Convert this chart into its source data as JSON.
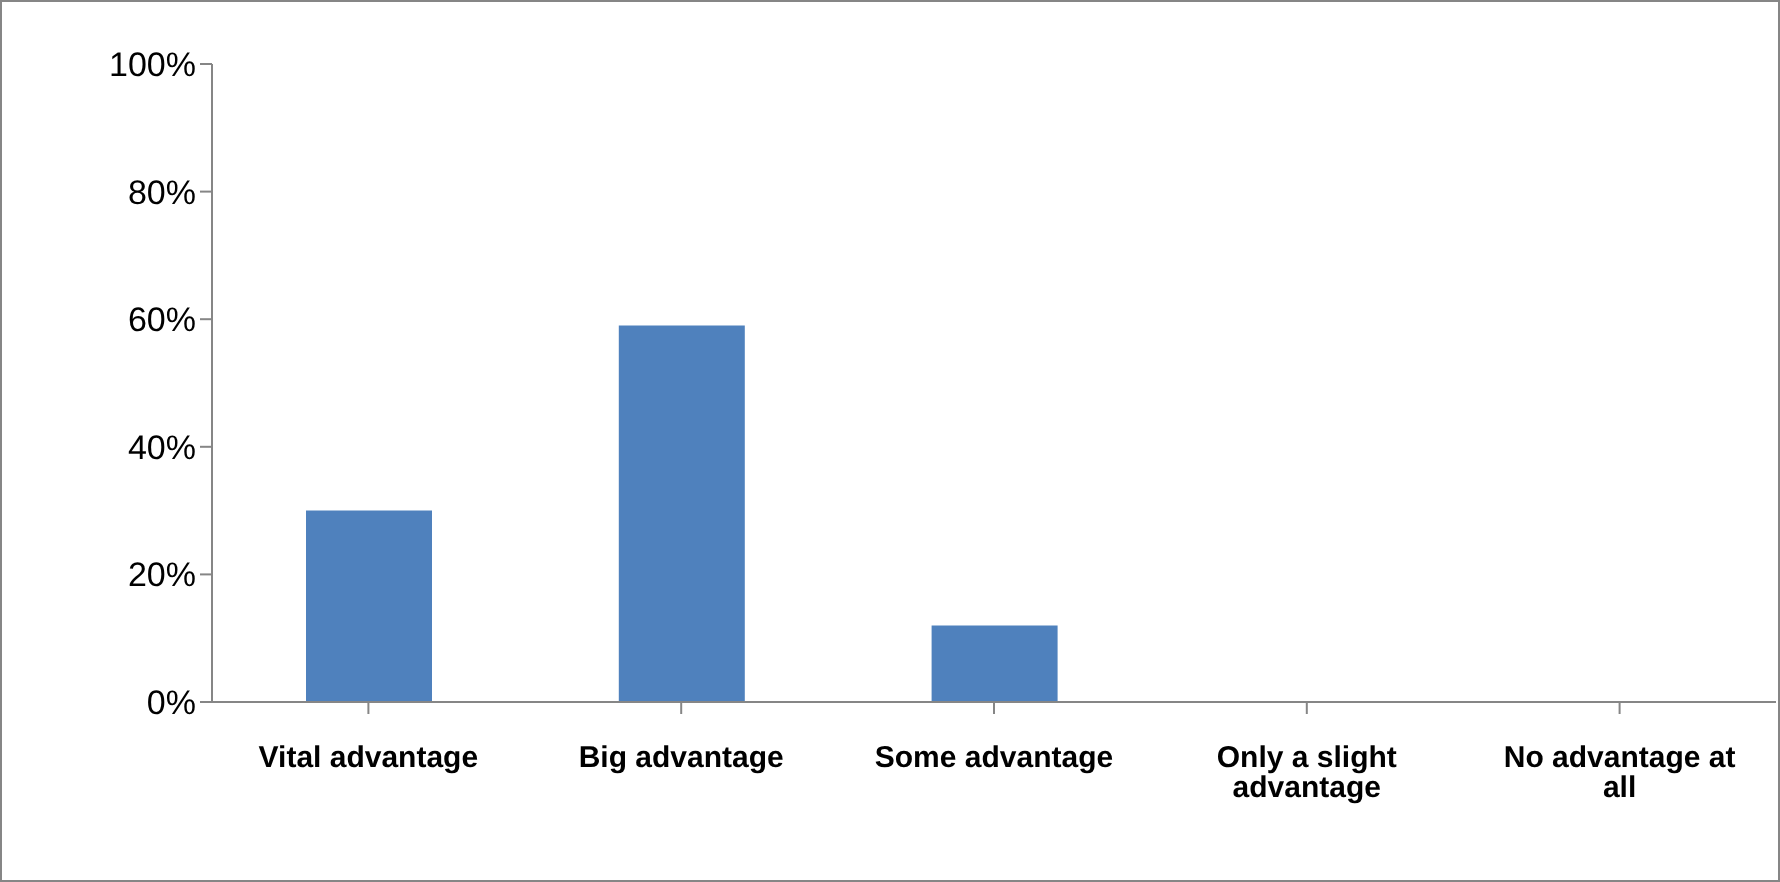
{
  "chart_data": {
    "type": "bar",
    "categories": [
      "Vital advantage",
      "Big advantage",
      "Some advantage",
      "Only a slight advantage",
      "No advantage at all"
    ],
    "values": [
      30,
      59,
      12,
      0,
      0
    ],
    "color": "#4f81bd",
    "ylim": [
      0,
      100
    ],
    "yticks": [
      {
        "value": 0,
        "label": "0%"
      },
      {
        "value": 20,
        "label": "20%"
      },
      {
        "value": 40,
        "label": "40%"
      },
      {
        "value": 60,
        "label": "60%"
      },
      {
        "value": 80,
        "label": "80%"
      },
      {
        "value": 100,
        "label": "100%"
      }
    ],
    "grid": false
  }
}
